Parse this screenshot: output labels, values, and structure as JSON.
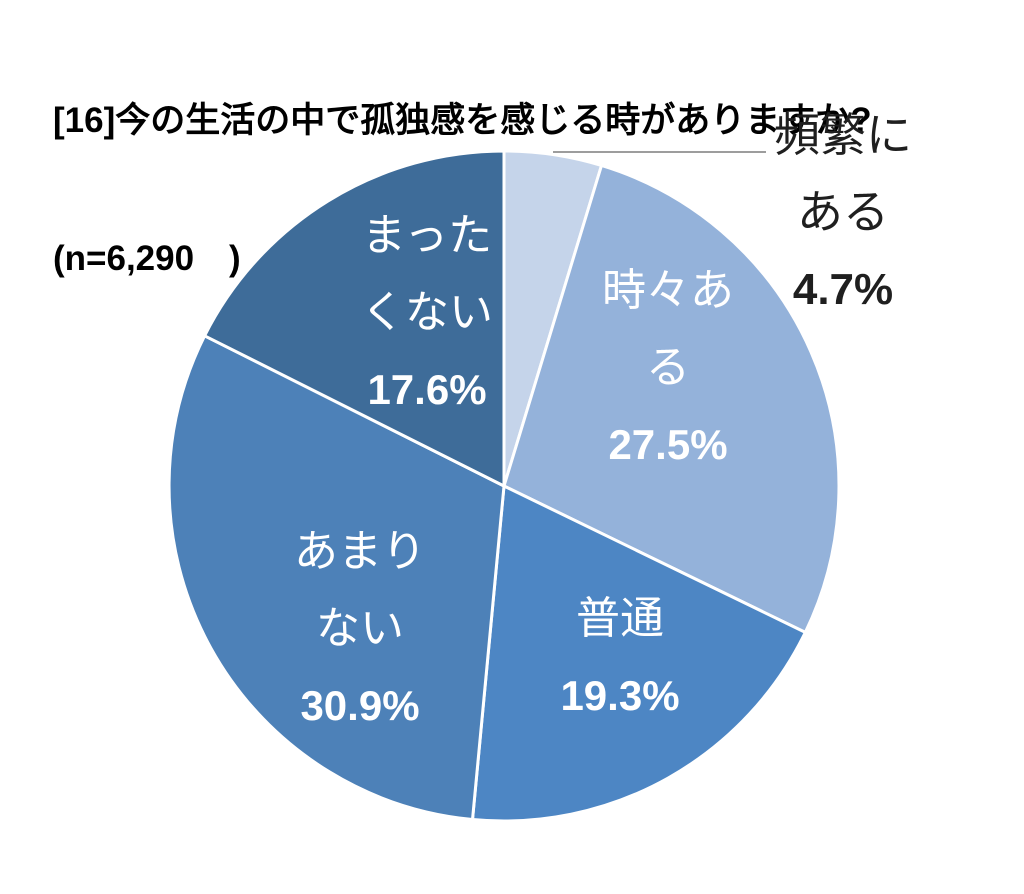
{
  "title": {
    "line1": "[16]今の生活の中で孤独感を感じる時がありますか?",
    "line2": "(n=6,290　)"
  },
  "chart_data": {
    "type": "pie",
    "title": "[16]今の生活の中で孤独感を感じる時がありますか?",
    "sample_size_label": "(n=6,290　)",
    "unit": "%",
    "start_angle_deg": 0,
    "direction": "clockwise",
    "legend": "none",
    "background": "#ffffff",
    "border_color": "#ffffff",
    "leader_line_color": "#9d9d9d",
    "slices": [
      {
        "name": "頻繁にある",
        "value": 4.7,
        "pct": "4.7%",
        "lines": [
          "頻繁に",
          "ある"
        ],
        "color": "#c5d4ea",
        "label_placement": "outside",
        "label_color": "#1f1f1f"
      },
      {
        "name": "時々ある",
        "value": 27.5,
        "pct": "27.5%",
        "lines": [
          "時々あ",
          "る"
        ],
        "color": "#94b2da",
        "label_placement": "inside",
        "label_color": "#ffffff"
      },
      {
        "name": "普通",
        "value": 19.3,
        "pct": "19.3%",
        "lines": [
          "普通"
        ],
        "color": "#4d86c4",
        "label_placement": "inside",
        "label_color": "#ffffff"
      },
      {
        "name": "あまりない",
        "value": 30.9,
        "pct": "30.9%",
        "lines": [
          "あまり",
          "ない"
        ],
        "color": "#4d81b8",
        "label_placement": "inside",
        "label_color": "#ffffff"
      },
      {
        "name": "まったくない",
        "value": 17.6,
        "pct": "17.6%",
        "lines": [
          "まった",
          "くない"
        ],
        "color": "#3e6c99",
        "label_placement": "inside",
        "label_color": "#ffffff"
      }
    ]
  }
}
